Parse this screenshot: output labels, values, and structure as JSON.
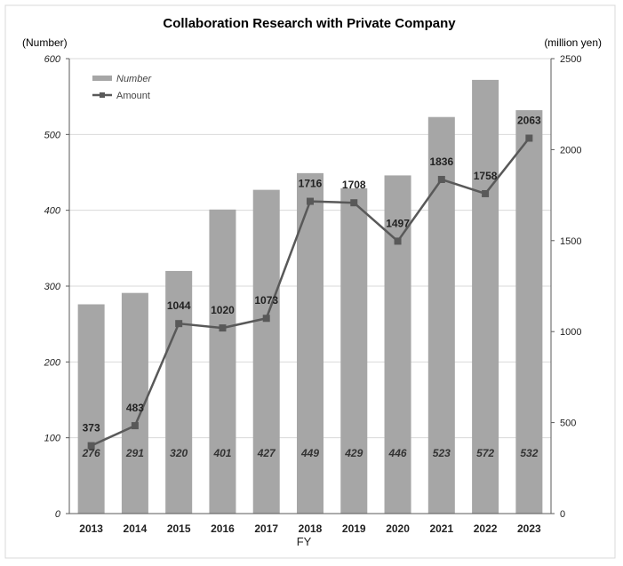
{
  "chart_data": {
    "type": "bar",
    "title": "Collaboration Research with Private Company",
    "xlabel": "FY",
    "ylabel_left": "(Number)",
    "ylabel_right": "(million yen)",
    "categories": [
      "2013",
      "2014",
      "2015",
      "2016",
      "2017",
      "2018",
      "2019",
      "2020",
      "2021",
      "2022",
      "2023"
    ],
    "series": [
      {
        "name": "Number",
        "type": "bar",
        "axis": "left",
        "color": "#a6a6a6",
        "values": [
          276,
          291,
          320,
          401,
          427,
          449,
          429,
          446,
          523,
          572,
          532
        ]
      },
      {
        "name": "Amount",
        "type": "line",
        "axis": "right",
        "color": "#595959",
        "values": [
          373,
          483,
          1044,
          1020,
          1073,
          1716,
          1708,
          1497,
          1836,
          1758,
          2063
        ]
      }
    ],
    "ylim_left": [
      0,
      600
    ],
    "yticks_left": [
      0,
      100,
      200,
      300,
      400,
      500,
      600
    ],
    "ylim_right": [
      0,
      2500
    ],
    "yticks_right": [
      0,
      500,
      1000,
      1500,
      2000,
      2500
    ],
    "grid": true,
    "legend_position": "top-left"
  }
}
